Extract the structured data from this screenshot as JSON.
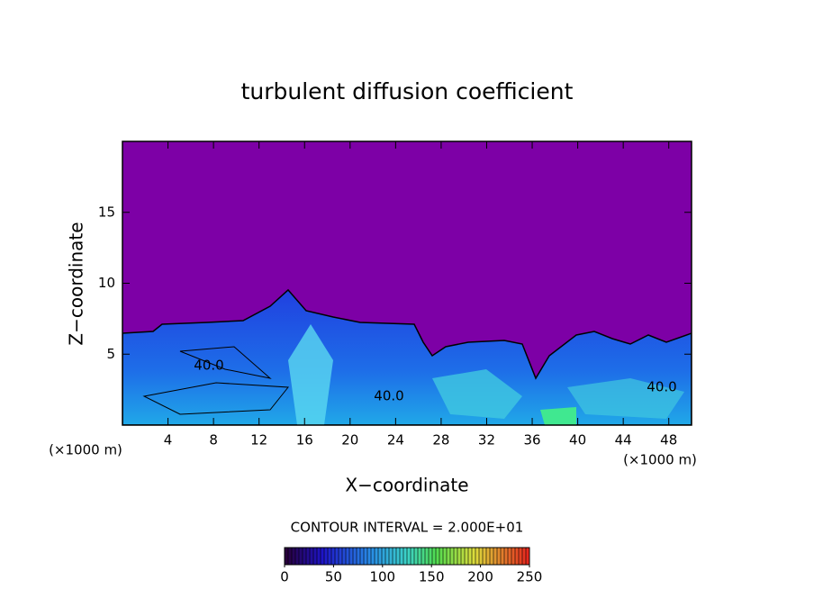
{
  "chart_data": {
    "type": "contour",
    "title": "turbulent diffusion coefficient",
    "xlabel": "X−coordinate",
    "ylabel": "Z−coordinate",
    "xunit": "(×1000 m)",
    "yunit": "(×1000 m)",
    "xlim": [
      0,
      50
    ],
    "xticks": [
      4,
      8,
      12,
      16,
      20,
      24,
      28,
      32,
      36,
      40,
      44,
      48
    ],
    "ylim": [
      0,
      20
    ],
    "yticks": [
      5,
      10,
      15
    ],
    "contour_interval_text": "CONTOUR INTERVAL = 2.000E+01",
    "contour_labels": [
      "40.0",
      "40.0",
      "40.0"
    ],
    "colorbar": {
      "clim": [
        0,
        250
      ],
      "ticks": [
        0,
        50,
        100,
        150,
        200,
        250
      ]
    }
  }
}
